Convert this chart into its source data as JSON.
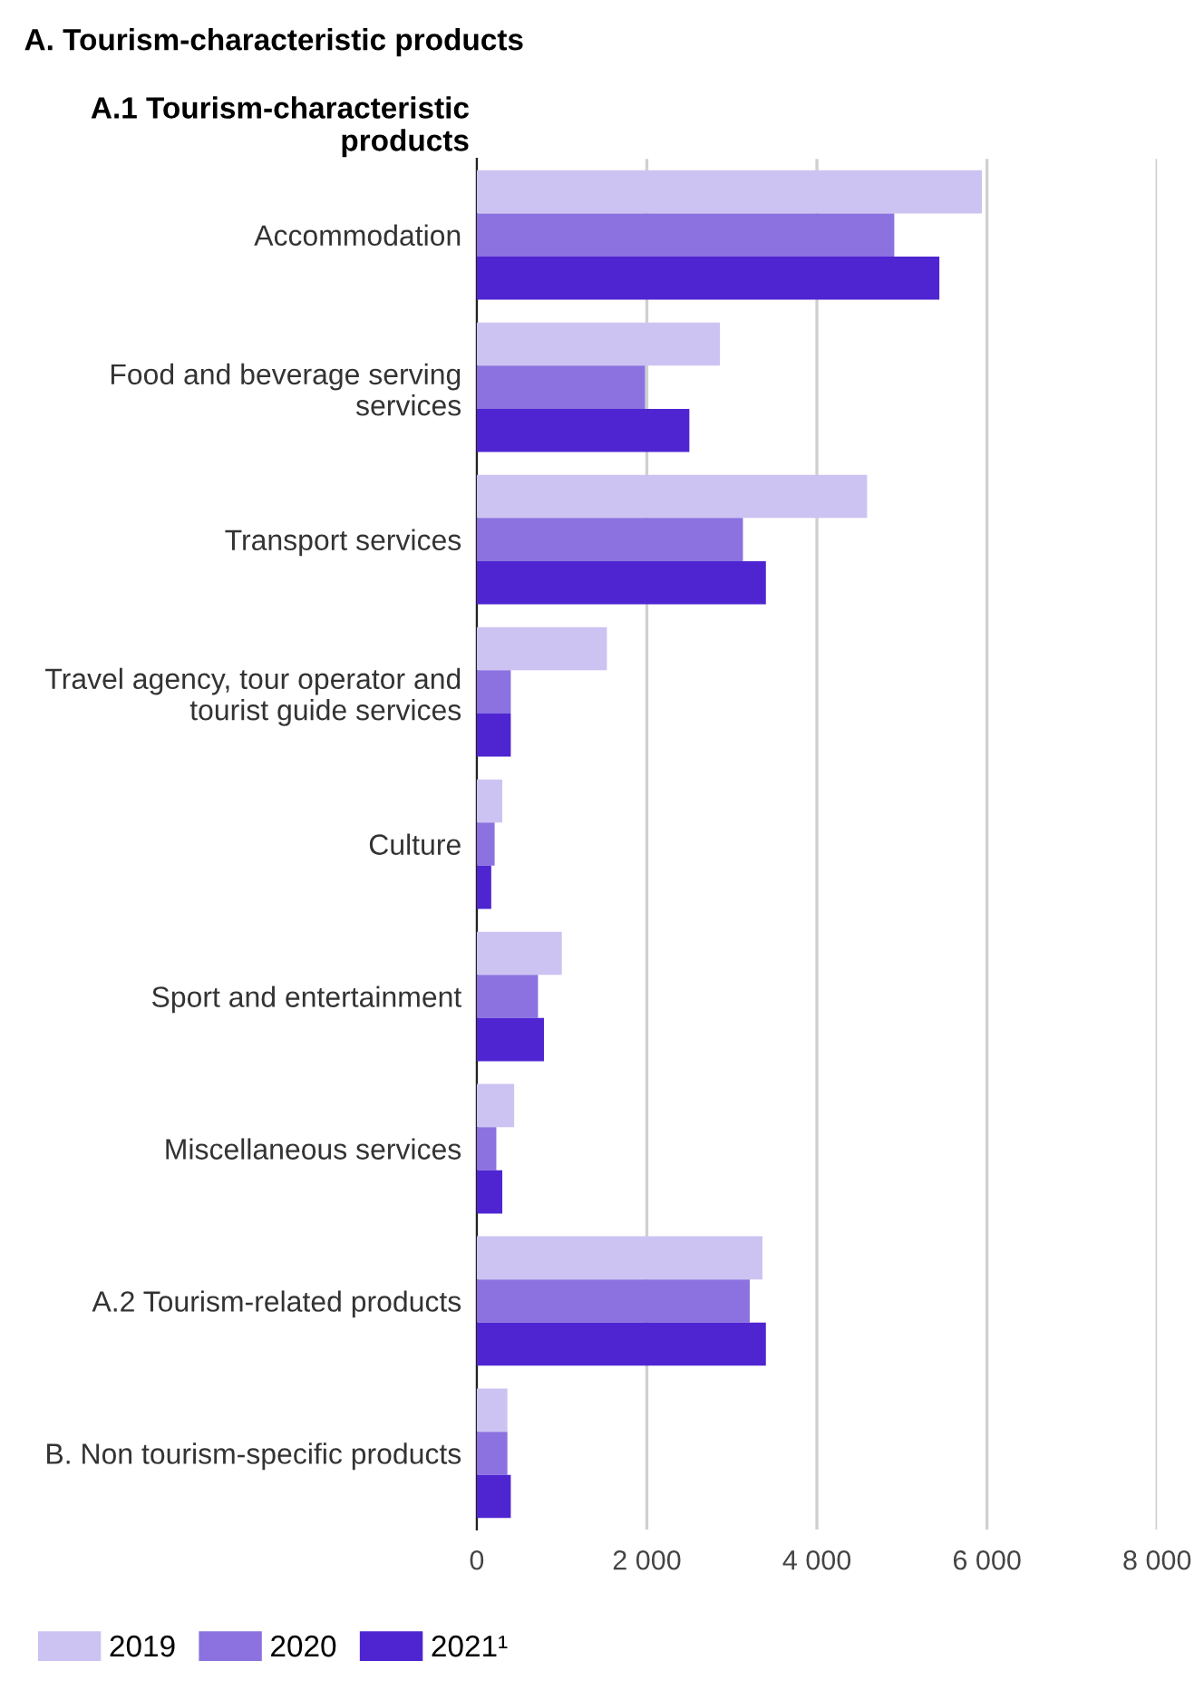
{
  "chart_data": {
    "type": "bar",
    "orientation": "horizontal",
    "title": "A. Tourism-characteristic products",
    "subtitle": "A.1 Tourism-characteristic\nproducts",
    "categories": [
      "Accommodation",
      "Food and beverage serving\nservices",
      "Transport services",
      "Travel agency, tour operator and\ntourist guide services",
      "Culture",
      "Sport and entertainment",
      "Miscellaneous services",
      "A.2 Tourism-related products",
      "B. Non tourism-specific products"
    ],
    "series": [
      {
        "name": "2019",
        "color": "#cdc3f2",
        "values": [
          5940,
          2860,
          4590,
          1530,
          300,
          1000,
          440,
          3360,
          360
        ]
      },
      {
        "name": "2020",
        "color": "#8b72e0",
        "values": [
          4910,
          1980,
          3130,
          400,
          210,
          720,
          230,
          3210,
          360
        ]
      },
      {
        "name": "2021¹",
        "color": "#4f25d1",
        "values": [
          5440,
          2500,
          3400,
          400,
          170,
          790,
          300,
          3400,
          400
        ]
      }
    ],
    "xlim": [
      0,
      8000
    ],
    "xticks": [
      0,
      {
        "value": 2000,
        "label": "2 000"
      },
      {
        "value": 4000,
        "label": "4 000"
      },
      {
        "value": 6000,
        "label": "6 000"
      },
      {
        "value": 8000,
        "label": "8 000"
      }
    ],
    "grid": "x",
    "legend": "bottom left"
  }
}
